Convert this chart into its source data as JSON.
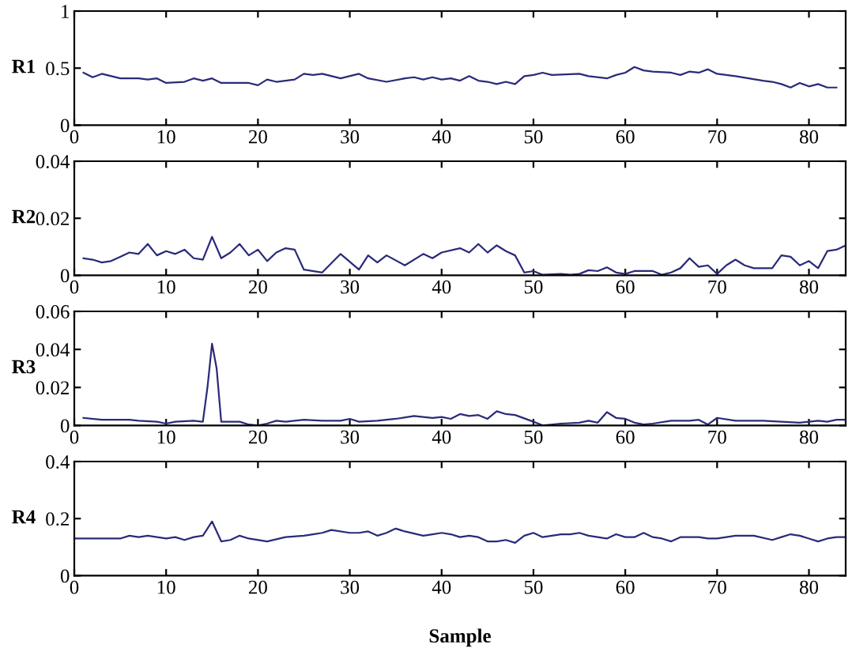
{
  "chart_data": [
    {
      "type": "line",
      "ylabel": "R1",
      "xlim": [
        0,
        84
      ],
      "xticks": [
        0,
        10,
        20,
        30,
        40,
        50,
        60,
        70,
        80
      ],
      "ylim": [
        0,
        1
      ],
      "yticks": [
        0,
        0.5,
        1
      ],
      "grid": false,
      "series": [
        {
          "color": "#2a2a7a",
          "x": [
            1,
            2,
            3,
            5,
            7,
            8,
            9,
            10,
            12,
            13,
            14,
            15,
            16,
            19,
            20,
            21,
            22,
            24,
            25,
            26,
            27,
            29,
            31,
            32,
            34,
            36,
            37,
            38,
            39,
            40,
            41,
            42,
            43,
            44,
            45,
            46,
            47,
            48,
            49,
            50,
            51,
            52,
            55,
            56,
            58,
            59,
            60,
            61,
            62,
            63,
            65,
            66,
            67,
            68,
            69,
            70,
            72,
            75,
            76,
            77,
            78,
            79,
            80,
            81,
            82,
            83
          ],
          "values": [
            0.46,
            0.42,
            0.45,
            0.41,
            0.41,
            0.4,
            0.41,
            0.37,
            0.38,
            0.41,
            0.39,
            0.41,
            0.37,
            0.37,
            0.35,
            0.4,
            0.38,
            0.4,
            0.45,
            0.44,
            0.45,
            0.41,
            0.45,
            0.41,
            0.38,
            0.41,
            0.42,
            0.4,
            0.42,
            0.4,
            0.41,
            0.39,
            0.43,
            0.39,
            0.38,
            0.36,
            0.38,
            0.36,
            0.43,
            0.44,
            0.46,
            0.44,
            0.45,
            0.43,
            0.41,
            0.44,
            0.46,
            0.51,
            0.48,
            0.47,
            0.46,
            0.44,
            0.47,
            0.46,
            0.49,
            0.45,
            0.43,
            0.39,
            0.38,
            0.36,
            0.33,
            0.37,
            0.34,
            0.36,
            0.33,
            0.33
          ]
        }
      ]
    },
    {
      "type": "line",
      "ylabel": "R2",
      "xlim": [
        0,
        84
      ],
      "xticks": [
        0,
        10,
        20,
        30,
        40,
        50,
        60,
        70,
        80
      ],
      "ylim": [
        0,
        0.04
      ],
      "yticks": [
        0,
        0.02,
        0.04
      ],
      "grid": false,
      "series": [
        {
          "color": "#2a2a7a",
          "x": [
            1,
            2,
            3,
            4,
            5,
            6,
            7,
            8,
            9,
            10,
            11,
            12,
            13,
            14,
            15,
            16,
            17,
            18,
            19,
            20,
            21,
            22,
            23,
            24,
            25,
            27,
            29,
            31,
            32,
            33,
            34,
            36,
            38,
            39,
            40,
            42,
            43,
            44,
            45,
            46,
            47,
            48,
            49,
            50,
            51,
            53,
            54,
            55,
            56,
            57,
            58,
            59,
            60,
            61,
            63,
            64,
            65,
            66,
            67,
            68,
            69,
            70,
            71,
            72,
            73,
            74,
            76,
            77,
            78,
            79,
            80,
            81,
            82,
            83,
            84
          ],
          "values": [
            0.006,
            0.0055,
            0.0045,
            0.005,
            0.0065,
            0.008,
            0.0075,
            0.011,
            0.007,
            0.0085,
            0.0075,
            0.009,
            0.006,
            0.0055,
            0.0135,
            0.006,
            0.008,
            0.011,
            0.007,
            0.009,
            0.005,
            0.008,
            0.0095,
            0.009,
            0.002,
            0.001,
            0.0075,
            0.002,
            0.007,
            0.0045,
            0.007,
            0.0035,
            0.0075,
            0.006,
            0.008,
            0.0095,
            0.008,
            0.011,
            0.008,
            0.0105,
            0.0085,
            0.007,
            0.001,
            0.0015,
            0.0002,
            0.0005,
            0.0002,
            0.0005,
            0.0018,
            0.0015,
            0.0028,
            0.001,
            0.0005,
            0.0015,
            0.0015,
            0.0002,
            0.001,
            0.0025,
            0.006,
            0.003,
            0.0035,
            0.0005,
            0.0035,
            0.0055,
            0.0035,
            0.0025,
            0.0025,
            0.007,
            0.0065,
            0.0035,
            0.005,
            0.0025,
            0.0085,
            0.009,
            0.0105
          ]
        }
      ]
    },
    {
      "type": "line",
      "ylabel": "R3",
      "xlim": [
        0,
        84
      ],
      "xticks": [
        0,
        10,
        20,
        30,
        40,
        50,
        60,
        70,
        80
      ],
      "ylim": [
        0,
        0.06
      ],
      "yticks": [
        0,
        0.02,
        0.04,
        0.06
      ],
      "grid": false,
      "series": [
        {
          "color": "#2a2a7a",
          "x": [
            1,
            3,
            6,
            7,
            9,
            10,
            11,
            13,
            14,
            14.5,
            15,
            15.5,
            16,
            18,
            19,
            20,
            21,
            22,
            23,
            25,
            27,
            29,
            30,
            31,
            33,
            35,
            37,
            38,
            39,
            40,
            41,
            42,
            43,
            44,
            45,
            46,
            47,
            48,
            50,
            51,
            53,
            55,
            56,
            57,
            58,
            59,
            60,
            61,
            62,
            63,
            65,
            67,
            68,
            69,
            70,
            72,
            75,
            77,
            79,
            80,
            81,
            82,
            83,
            84
          ],
          "values": [
            0.004,
            0.003,
            0.003,
            0.0025,
            0.002,
            0.001,
            0.002,
            0.0025,
            0.002,
            0.02,
            0.043,
            0.03,
            0.002,
            0.002,
            0.0005,
            0.0,
            0.001,
            0.0025,
            0.002,
            0.003,
            0.0025,
            0.0025,
            0.0035,
            0.002,
            0.0025,
            0.0035,
            0.005,
            0.0045,
            0.004,
            0.0045,
            0.0035,
            0.006,
            0.005,
            0.0055,
            0.0035,
            0.0075,
            0.006,
            0.0055,
            0.002,
            0.0,
            0.001,
            0.0015,
            0.0025,
            0.0015,
            0.007,
            0.004,
            0.0035,
            0.0015,
            0.0005,
            0.001,
            0.0025,
            0.0025,
            0.003,
            0.0005,
            0.004,
            0.0025,
            0.0025,
            0.002,
            0.0015,
            0.002,
            0.0025,
            0.002,
            0.003,
            0.003
          ]
        }
      ]
    },
    {
      "type": "line",
      "ylabel": "R4",
      "xlabel": "Sample",
      "xlim": [
        0,
        84
      ],
      "xticks": [
        0,
        10,
        20,
        30,
        40,
        50,
        60,
        70,
        80
      ],
      "ylim": [
        0,
        0.4
      ],
      "yticks": [
        0,
        0.2,
        0.4
      ],
      "grid": false,
      "series": [
        {
          "color": "#2a2a7a",
          "x": [
            0,
            5,
            6,
            7,
            8,
            10,
            11,
            12,
            13,
            14,
            15,
            16,
            17,
            18,
            19,
            21,
            23,
            25,
            26,
            27,
            28,
            30,
            31,
            32,
            33,
            34,
            35,
            36,
            38,
            39,
            40,
            41,
            42,
            43,
            44,
            45,
            46,
            47,
            48,
            49,
            50,
            51,
            52,
            53,
            54,
            55,
            56,
            57,
            58,
            59,
            60,
            61,
            62,
            63,
            64,
            65,
            66,
            68,
            69,
            70,
            72,
            74,
            76,
            77,
            78,
            79,
            80,
            81,
            82,
            83,
            84
          ],
          "values": [
            0.13,
            0.13,
            0.14,
            0.135,
            0.14,
            0.13,
            0.135,
            0.125,
            0.135,
            0.14,
            0.19,
            0.12,
            0.125,
            0.14,
            0.13,
            0.12,
            0.135,
            0.14,
            0.145,
            0.15,
            0.16,
            0.15,
            0.15,
            0.155,
            0.14,
            0.15,
            0.165,
            0.155,
            0.14,
            0.145,
            0.15,
            0.145,
            0.135,
            0.14,
            0.135,
            0.12,
            0.12,
            0.125,
            0.115,
            0.14,
            0.15,
            0.135,
            0.14,
            0.145,
            0.145,
            0.15,
            0.14,
            0.135,
            0.13,
            0.145,
            0.135,
            0.135,
            0.15,
            0.135,
            0.13,
            0.12,
            0.135,
            0.135,
            0.13,
            0.13,
            0.14,
            0.14,
            0.125,
            0.135,
            0.145,
            0.14,
            0.13,
            0.12,
            0.13,
            0.135,
            0.135
          ]
        }
      ]
    }
  ]
}
